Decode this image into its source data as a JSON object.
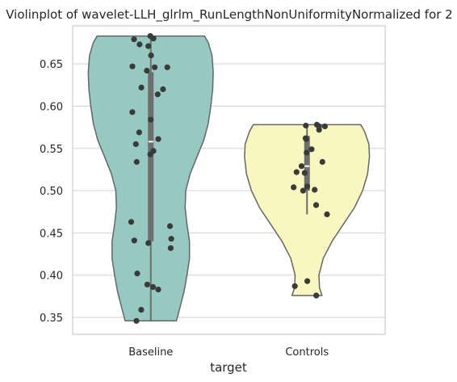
{
  "chart_data": {
    "type": "violin",
    "title": "Violinplot of wavelet-LLH_glrlm_RunLengthNonUniformityNormalized for 2",
    "xlabel": "target",
    "ylabel": "",
    "categories": [
      "Baseline",
      "Controls"
    ],
    "y_ticks": [
      0.35,
      0.4,
      0.45,
      0.5,
      0.55,
      0.6,
      0.65
    ],
    "y_tick_labels": [
      "0.35",
      "0.40",
      "0.45",
      "0.50",
      "0.55",
      "0.60",
      "0.65"
    ],
    "ylim": [
      0.33,
      0.695
    ],
    "grid": "horizontal",
    "colors": {
      "Baseline": "#96c9c1",
      "Controls": "#f7f7bf",
      "edge": "#666666",
      "box": "#6e6e6e",
      "points": "#3a3a3a"
    },
    "groups": [
      {
        "name": "Baseline",
        "min": 0.346,
        "max": 0.683,
        "q1": 0.44,
        "median": 0.558,
        "q3": 0.64,
        "whisker_low": 0.346,
        "whisker_high": 0.683,
        "profile": [
          [
            0.346,
            0.41
          ],
          [
            0.36,
            0.46
          ],
          [
            0.38,
            0.53
          ],
          [
            0.4,
            0.58
          ],
          [
            0.42,
            0.62
          ],
          [
            0.44,
            0.62
          ],
          [
            0.46,
            0.58
          ],
          [
            0.48,
            0.55
          ],
          [
            0.5,
            0.56
          ],
          [
            0.52,
            0.63
          ],
          [
            0.54,
            0.74
          ],
          [
            0.56,
            0.85
          ],
          [
            0.58,
            0.92
          ],
          [
            0.6,
            0.96
          ],
          [
            0.62,
            0.99
          ],
          [
            0.64,
            1.0
          ],
          [
            0.66,
            0.98
          ],
          [
            0.675,
            0.92
          ],
          [
            0.683,
            0.86
          ]
        ],
        "points": [
          0.683,
          0.68,
          0.679,
          0.673,
          0.671,
          0.66,
          0.647,
          0.646,
          0.646,
          0.642,
          0.622,
          0.62,
          0.614,
          0.593,
          0.584,
          0.569,
          0.561,
          0.555,
          0.547,
          0.543,
          0.534,
          0.463,
          0.458,
          0.443,
          0.441,
          0.438,
          0.432,
          0.402,
          0.389,
          0.386,
          0.383,
          0.359,
          0.346
        ]
      },
      {
        "name": "Controls",
        "min": 0.376,
        "max": 0.578,
        "q1": 0.5,
        "median": 0.529,
        "q3": 0.565,
        "whisker_low": 0.472,
        "whisker_high": 0.578,
        "profile": [
          [
            0.376,
            0.24
          ],
          [
            0.385,
            0.2
          ],
          [
            0.4,
            0.19
          ],
          [
            0.42,
            0.26
          ],
          [
            0.44,
            0.4
          ],
          [
            0.46,
            0.58
          ],
          [
            0.48,
            0.76
          ],
          [
            0.5,
            0.89
          ],
          [
            0.52,
            0.97
          ],
          [
            0.54,
            1.0
          ],
          [
            0.555,
            0.99
          ],
          [
            0.57,
            0.92
          ],
          [
            0.578,
            0.86
          ]
        ],
        "points": [
          0.578,
          0.577,
          0.576,
          0.576,
          0.572,
          0.562,
          0.561,
          0.549,
          0.545,
          0.534,
          0.529,
          0.522,
          0.521,
          0.505,
          0.504,
          0.501,
          0.5,
          0.483,
          0.472,
          0.393,
          0.387,
          0.376
        ]
      }
    ]
  }
}
